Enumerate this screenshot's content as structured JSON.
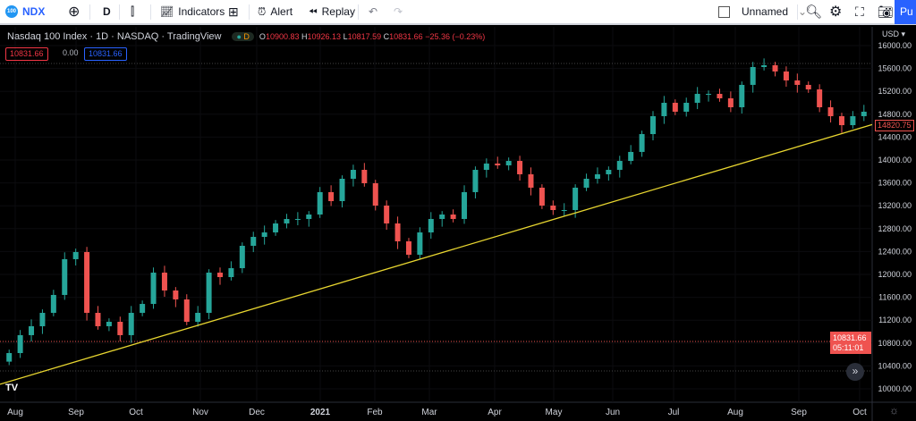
{
  "toolbar": {
    "symbol": "NDX",
    "logo_text": "100",
    "interval": "D",
    "indicators": "Indicators",
    "alert": "Alert",
    "replay": "Replay",
    "layout_name": "Unnamed",
    "publish": "Pu"
  },
  "legend": {
    "title": "Nasdaq 100 Index · 1D · NASDAQ · TradingView",
    "badge": "D",
    "open_label": "O",
    "open": "10900.83",
    "high_label": "H",
    "high": "10926.13",
    "low_label": "L",
    "low": "10817.59",
    "close_label": "C",
    "close": "10831.66",
    "change": "−25.36 (−0.23%)",
    "bid": "10831.66",
    "spread": "0.00",
    "ask": "10831.66"
  },
  "axis": {
    "currency": "USD ▾",
    "last_price": "14820.75",
    "cursor_price": "10831.66",
    "countdown": "05:11:01"
  },
  "colors": {
    "up": "#26a69a",
    "down": "#ef5350",
    "trendline": "#e8d630",
    "accent": "#2962ff"
  },
  "chart_data": {
    "type": "candlestick",
    "ylim": [
      10000,
      16000
    ],
    "yticks": [
      16000,
      15600,
      15200,
      14800,
      14400,
      14000,
      13600,
      13200,
      12800,
      12400,
      12000,
      11600,
      11200,
      10800,
      10400,
      10000
    ],
    "xticks": [
      "Aug",
      "Sep",
      "Oct",
      "Nov",
      "Dec",
      "2021",
      "Feb",
      "Mar",
      "Apr",
      "May",
      "Jun",
      "Jul",
      "Aug",
      "Sep",
      "Oct"
    ],
    "closes": [
      10625,
      10938,
      11094,
      11328,
      11641,
      12266,
      12391,
      11328,
      11094,
      11172,
      10938,
      11328,
      11484,
      12031,
      11719,
      11563,
      11172,
      11328,
      12031,
      11953,
      12109,
      12500,
      12656,
      12734,
      12891,
      12969,
      12969,
      13047,
      13438,
      13281,
      13672,
      13828,
      13594,
      13203,
      12891,
      12578,
      12344,
      12734,
      12969,
      13047,
      12969,
      13438,
      13828,
      13938,
      13906,
      13984,
      13750,
      13516,
      13203,
      13125,
      13125,
      13516,
      13672,
      13750,
      13828,
      13984,
      14141,
      14453,
      14766,
      15000,
      14844,
      15000,
      15156,
      15156,
      15078,
      14922,
      15313,
      15625,
      15656,
      15547,
      15391,
      15313,
      15234,
      14922,
      14766,
      14609,
      14766,
      14844
    ],
    "trendline": {
      "start": 10080,
      "end": 14620
    }
  }
}
